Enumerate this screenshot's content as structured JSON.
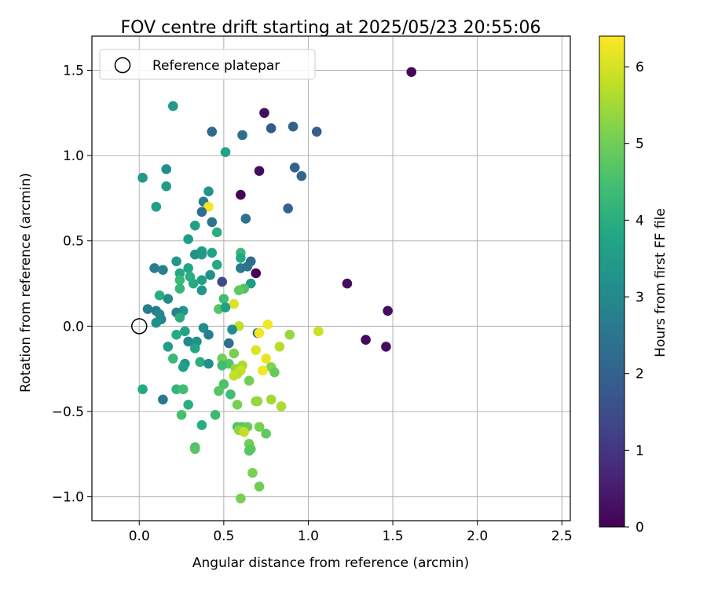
{
  "chart_data": {
    "type": "scatter",
    "title": "FOV centre drift starting at 2025/05/23 20:55:06",
    "xlabel": "Angular distance from reference (arcmin)",
    "ylabel": "Rotation from reference (arcmin)",
    "xlim": [
      -0.28,
      2.55
    ],
    "ylim": [
      -1.14,
      1.7
    ],
    "xticks": [
      "0.0",
      "0.5",
      "1.0",
      "1.5",
      "2.0",
      "2.5"
    ],
    "xtick_values": [
      0,
      0.5,
      1.0,
      1.5,
      2.0,
      2.5
    ],
    "yticks": [
      "−1.0",
      "−0.5",
      "0.0",
      "0.5",
      "1.0",
      "1.5"
    ],
    "ytick_values": [
      -1.0,
      -0.5,
      0,
      0.5,
      1.0,
      1.5
    ],
    "grid": true,
    "legend": {
      "label": "Reference platepar",
      "placement": "top-left"
    },
    "reference_point": {
      "x": 0,
      "y": 0
    },
    "colorbar": {
      "label": "Hours from first FF file",
      "range": [
        0,
        6.4
      ],
      "ticks": [
        "0",
        "1",
        "2",
        "3",
        "4",
        "5",
        "6"
      ],
      "tick_values": [
        0,
        1,
        2,
        3,
        4,
        5,
        6
      ],
      "colormap": "viridis"
    },
    "points": [
      {
        "x": 1.61,
        "y": 1.49,
        "h": 0.1
      },
      {
        "x": 0.74,
        "y": 1.25,
        "h": 0.2
      },
      {
        "x": 0.78,
        "y": 1.16,
        "h": 1.8
      },
      {
        "x": 0.91,
        "y": 1.17,
        "h": 2.0
      },
      {
        "x": 1.05,
        "y": 1.14,
        "h": 1.9
      },
      {
        "x": 0.43,
        "y": 1.14,
        "h": 2.2
      },
      {
        "x": 0.61,
        "y": 1.12,
        "h": 2.3
      },
      {
        "x": 0.2,
        "y": 1.29,
        "h": 3.4
      },
      {
        "x": 0.51,
        "y": 1.02,
        "h": 3.7
      },
      {
        "x": 0.71,
        "y": 0.91,
        "h": 0.2
      },
      {
        "x": 0.92,
        "y": 0.93,
        "h": 2.0
      },
      {
        "x": 0.96,
        "y": 0.88,
        "h": 2.1
      },
      {
        "x": 0.16,
        "y": 0.92,
        "h": 3.1
      },
      {
        "x": 0.02,
        "y": 0.87,
        "h": 3.4
      },
      {
        "x": 0.16,
        "y": 0.82,
        "h": 3.5
      },
      {
        "x": 0.41,
        "y": 0.79,
        "h": 3.3
      },
      {
        "x": 0.6,
        "y": 0.77,
        "h": 0.1
      },
      {
        "x": 0.38,
        "y": 0.73,
        "h": 2.6
      },
      {
        "x": 0.41,
        "y": 0.7,
        "h": 6.3
      },
      {
        "x": 0.37,
        "y": 0.67,
        "h": 2.3
      },
      {
        "x": 0.1,
        "y": 0.7,
        "h": 3.6
      },
      {
        "x": 0.88,
        "y": 0.69,
        "h": 2.0
      },
      {
        "x": 0.63,
        "y": 0.63,
        "h": 2.4
      },
      {
        "x": 0.43,
        "y": 0.61,
        "h": 2.5
      },
      {
        "x": 0.33,
        "y": 0.59,
        "h": 3.6
      },
      {
        "x": 0.46,
        "y": 0.55,
        "h": 4.0
      },
      {
        "x": 0.29,
        "y": 0.51,
        "h": 3.5
      },
      {
        "x": 0.6,
        "y": 0.43,
        "h": 4.3
      },
      {
        "x": 0.37,
        "y": 0.44,
        "h": 3.5
      },
      {
        "x": 0.43,
        "y": 0.43,
        "h": 3.7
      },
      {
        "x": 0.33,
        "y": 0.42,
        "h": 3.2
      },
      {
        "x": 0.37,
        "y": 0.42,
        "h": 3.4
      },
      {
        "x": 0.22,
        "y": 0.38,
        "h": 3.4
      },
      {
        "x": 0.6,
        "y": 0.4,
        "h": 3.8
      },
      {
        "x": 0.66,
        "y": 0.38,
        "h": 2.2
      },
      {
        "x": 0.46,
        "y": 0.36,
        "h": 3.9
      },
      {
        "x": 0.09,
        "y": 0.34,
        "h": 2.7
      },
      {
        "x": 0.14,
        "y": 0.33,
        "h": 2.8
      },
      {
        "x": 0.6,
        "y": 0.34,
        "h": 2.6
      },
      {
        "x": 0.29,
        "y": 0.34,
        "h": 3.7
      },
      {
        "x": 0.64,
        "y": 0.35,
        "h": 2.4
      },
      {
        "x": 0.69,
        "y": 0.31,
        "h": 0.1
      },
      {
        "x": 0.24,
        "y": 0.31,
        "h": 3.8
      },
      {
        "x": 0.42,
        "y": 0.3,
        "h": 3.2
      },
      {
        "x": 0.3,
        "y": 0.29,
        "h": 4.0
      },
      {
        "x": 0.24,
        "y": 0.27,
        "h": 4.3
      },
      {
        "x": 0.37,
        "y": 0.27,
        "h": 3.6
      },
      {
        "x": 0.49,
        "y": 0.26,
        "h": 1.5
      },
      {
        "x": 0.66,
        "y": 0.25,
        "h": 3.5
      },
      {
        "x": 0.32,
        "y": 0.25,
        "h": 3.9
      },
      {
        "x": 0.24,
        "y": 0.22,
        "h": 4.2
      },
      {
        "x": 0.62,
        "y": 0.22,
        "h": 4.6
      },
      {
        "x": 0.37,
        "y": 0.21,
        "h": 3.3
      },
      {
        "x": 0.59,
        "y": 0.21,
        "h": 4.8
      },
      {
        "x": 1.23,
        "y": 0.25,
        "h": 0.2
      },
      {
        "x": 0.12,
        "y": 0.18,
        "h": 4.0
      },
      {
        "x": 0.17,
        "y": 0.16,
        "h": 3.1
      },
      {
        "x": 0.5,
        "y": 0.16,
        "h": 4.4
      },
      {
        "x": 0.56,
        "y": 0.13,
        "h": 6.1
      },
      {
        "x": 0.05,
        "y": 0.1,
        "h": 2.7
      },
      {
        "x": 0.47,
        "y": 0.1,
        "h": 4.7
      },
      {
        "x": 0.51,
        "y": 0.11,
        "h": 3.6
      },
      {
        "x": 0.1,
        "y": 0.09,
        "h": 2.6
      },
      {
        "x": 0.26,
        "y": 0.09,
        "h": 3.3
      },
      {
        "x": 1.47,
        "y": 0.09,
        "h": 0.2
      },
      {
        "x": 0.22,
        "y": 0.08,
        "h": 2.8
      },
      {
        "x": 0.12,
        "y": 0.07,
        "h": 3.0
      },
      {
        "x": 0.24,
        "y": 0.05,
        "h": 4.0
      },
      {
        "x": 0.13,
        "y": 0.04,
        "h": 2.9
      },
      {
        "x": 0.1,
        "y": 0.02,
        "h": 3.2
      },
      {
        "x": 0.59,
        "y": 0.0,
        "h": 5.8
      },
      {
        "x": 0.76,
        "y": 0.01,
        "h": 6.3
      },
      {
        "x": 0.38,
        "y": -0.01,
        "h": 3.1
      },
      {
        "x": 0.55,
        "y": -0.02,
        "h": 3.1
      },
      {
        "x": 0.7,
        "y": -0.04,
        "h": 2.2
      },
      {
        "x": 0.71,
        "y": -0.04,
        "h": 6.3
      },
      {
        "x": 0.27,
        "y": -0.03,
        "h": 3.7
      },
      {
        "x": 0.89,
        "y": -0.05,
        "h": 5.4
      },
      {
        "x": 1.06,
        "y": -0.03,
        "h": 5.9
      },
      {
        "x": 0.22,
        "y": -0.05,
        "h": 3.9
      },
      {
        "x": 0.41,
        "y": -0.05,
        "h": 2.8
      },
      {
        "x": 1.34,
        "y": -0.08,
        "h": 0.2
      },
      {
        "x": 0.29,
        "y": -0.09,
        "h": 3.0
      },
      {
        "x": 0.34,
        "y": -0.09,
        "h": 3.2
      },
      {
        "x": 0.53,
        "y": -0.1,
        "h": 2.3
      },
      {
        "x": 0.17,
        "y": -0.12,
        "h": 3.5
      },
      {
        "x": 0.33,
        "y": -0.13,
        "h": 3.8
      },
      {
        "x": 0.83,
        "y": -0.12,
        "h": 5.7
      },
      {
        "x": 1.46,
        "y": -0.12,
        "h": 0.2
      },
      {
        "x": 0.69,
        "y": -0.14,
        "h": 6.1
      },
      {
        "x": 0.56,
        "y": -0.16,
        "h": 5.1
      },
      {
        "x": 0.75,
        "y": -0.19,
        "h": 6.2
      },
      {
        "x": 0.2,
        "y": -0.19,
        "h": 4.3
      },
      {
        "x": 0.49,
        "y": -0.19,
        "h": 5.0
      },
      {
        "x": 0.36,
        "y": -0.21,
        "h": 4.0
      },
      {
        "x": 0.27,
        "y": -0.22,
        "h": 3.3
      },
      {
        "x": 0.41,
        "y": -0.22,
        "h": 3.2
      },
      {
        "x": 0.53,
        "y": -0.22,
        "h": 4.7
      },
      {
        "x": 0.49,
        "y": -0.23,
        "h": 4.4
      },
      {
        "x": 0.61,
        "y": -0.23,
        "h": 5.6
      },
      {
        "x": 0.26,
        "y": -0.24,
        "h": 3.6
      },
      {
        "x": 0.78,
        "y": -0.24,
        "h": 5.2
      },
      {
        "x": 0.57,
        "y": -0.25,
        "h": 5.4
      },
      {
        "x": 0.6,
        "y": -0.26,
        "h": 5.9
      },
      {
        "x": 0.73,
        "y": -0.26,
        "h": 6.3
      },
      {
        "x": 0.8,
        "y": -0.27,
        "h": 4.9
      },
      {
        "x": 0.58,
        "y": -0.28,
        "h": 5.7
      },
      {
        "x": 0.56,
        "y": -0.29,
        "h": 5.8
      },
      {
        "x": 0.65,
        "y": -0.32,
        "h": 5.0
      },
      {
        "x": 0.5,
        "y": -0.34,
        "h": 4.6
      },
      {
        "x": 0.02,
        "y": -0.37,
        "h": 3.9
      },
      {
        "x": 0.22,
        "y": -0.37,
        "h": 4.2
      },
      {
        "x": 0.26,
        "y": -0.37,
        "h": 4.4
      },
      {
        "x": 0.47,
        "y": -0.38,
        "h": 4.7
      },
      {
        "x": 0.54,
        "y": -0.4,
        "h": 4.4
      },
      {
        "x": 0.14,
        "y": -0.43,
        "h": 2.6
      },
      {
        "x": 0.69,
        "y": -0.44,
        "h": 5.3
      },
      {
        "x": 0.7,
        "y": -0.44,
        "h": 5.4
      },
      {
        "x": 0.78,
        "y": -0.43,
        "h": 5.5
      },
      {
        "x": 0.29,
        "y": -0.46,
        "h": 4.0
      },
      {
        "x": 0.58,
        "y": -0.46,
        "h": 5.1
      },
      {
        "x": 0.84,
        "y": -0.47,
        "h": 5.6
      },
      {
        "x": 0.25,
        "y": -0.52,
        "h": 4.5
      },
      {
        "x": 0.45,
        "y": -0.52,
        "h": 4.3
      },
      {
        "x": 0.37,
        "y": -0.58,
        "h": 4.0
      },
      {
        "x": 0.58,
        "y": -0.59,
        "h": 4.6
      },
      {
        "x": 0.61,
        "y": -0.59,
        "h": 4.7
      },
      {
        "x": 0.64,
        "y": -0.59,
        "h": 4.9
      },
      {
        "x": 0.71,
        "y": -0.59,
        "h": 5.1
      },
      {
        "x": 0.59,
        "y": -0.61,
        "h": 5.3
      },
      {
        "x": 0.62,
        "y": -0.62,
        "h": 5.8
      },
      {
        "x": 0.75,
        "y": -0.63,
        "h": 4.8
      },
      {
        "x": 0.65,
        "y": -0.69,
        "h": 5.0
      },
      {
        "x": 0.33,
        "y": -0.71,
        "h": 4.5
      },
      {
        "x": 0.33,
        "y": -0.72,
        "h": 4.7
      },
      {
        "x": 0.66,
        "y": -0.72,
        "h": 4.8
      },
      {
        "x": 0.65,
        "y": -0.73,
        "h": 4.7
      },
      {
        "x": 0.67,
        "y": -0.86,
        "h": 5.1
      },
      {
        "x": 0.71,
        "y": -0.94,
        "h": 5.0
      },
      {
        "x": 0.6,
        "y": -1.01,
        "h": 5.1
      }
    ]
  }
}
